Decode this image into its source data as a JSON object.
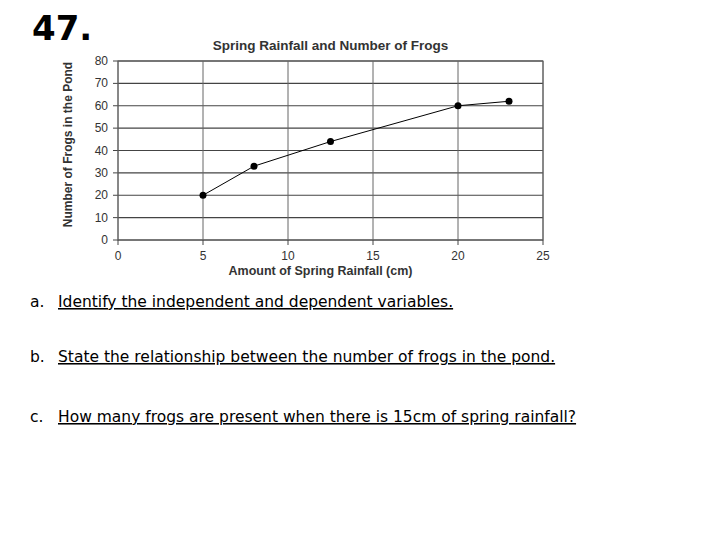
{
  "number": "47.",
  "chart_data": {
    "type": "line",
    "title": "Spring Rainfall and Number of Frogs",
    "x_label": "Amount of Spring Rainfall (cm)",
    "y_label": "Number of Frogs in the Pond",
    "x": [
      5,
      8,
      12.5,
      20,
      23
    ],
    "values": [
      20,
      33,
      44,
      60,
      62
    ],
    "xlim": [
      0,
      25
    ],
    "xticks": [
      0,
      5,
      10,
      15,
      20,
      25
    ],
    "ylim": [
      0,
      80
    ],
    "yticks": [
      0,
      10,
      20,
      30,
      40,
      50,
      60,
      70,
      80
    ],
    "grid": true,
    "color": "#000000",
    "marker": "circle",
    "line_style": "solid"
  },
  "questions": [
    {
      "letter": "a.",
      "text": "Identify the independent and dependent variables."
    },
    {
      "letter": "b.",
      "text": "State the relationship between the number of frogs in the pond."
    },
    {
      "letter": "c.",
      "text": "How many frogs are present when there is 15cm of spring rainfall?"
    }
  ]
}
